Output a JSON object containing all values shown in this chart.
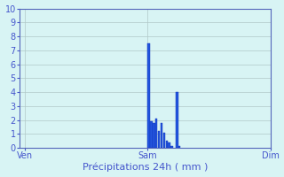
{
  "xlabel": "Précipitations 24h ( mm )",
  "xtick_labels": [
    "Ven",
    "Sam",
    "Dim"
  ],
  "xtick_positions": [
    0,
    48,
    96
  ],
  "ylim": [
    0,
    10
  ],
  "yticks": [
    0,
    1,
    2,
    3,
    4,
    5,
    6,
    7,
    8,
    9,
    10
  ],
  "xlim": [
    -2,
    96
  ],
  "bar_color": "#2255dd",
  "bar_edge_color": "#1133bb",
  "background_color": "#d8f4f4",
  "grid_color": "#b0c8c8",
  "bar_positions": [
    48.5,
    49.5,
    50.5,
    51.5,
    52.5,
    53.5,
    54.5,
    55.5,
    56.5,
    57.5,
    59.5,
    60.5
  ],
  "bar_heights": [
    7.5,
    1.9,
    1.8,
    2.1,
    1.2,
    1.8,
    1.1,
    0.5,
    0.4,
    0.15,
    4.0,
    0.1
  ],
  "bar_width": 0.85,
  "text_color": "#4455cc",
  "xlabel_fontsize": 8,
  "tick_fontsize": 7,
  "grid_linewidth": 0.5,
  "spine_color": "#5566bb"
}
